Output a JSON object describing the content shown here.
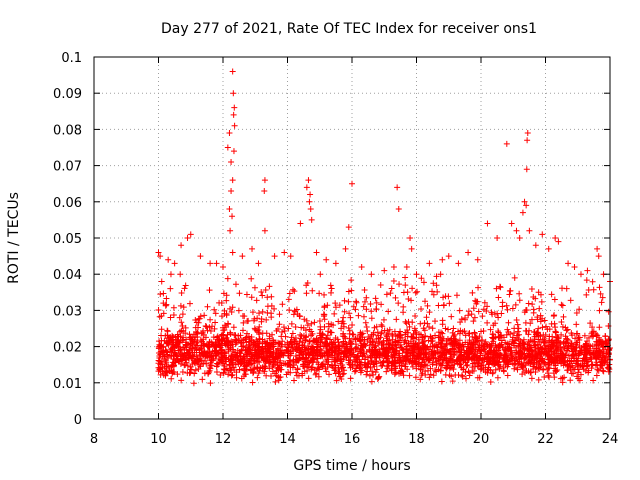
{
  "chart_data": {
    "type": "scatter",
    "title": "Day 277 of 2021, Rate Of TEC Index for receiver ons1",
    "xlabel": "GPS time / hours",
    "ylabel": "ROTI / TECUs",
    "xlim": [
      8,
      24
    ],
    "ylim": [
      0,
      0.1
    ],
    "x_ticks": [
      8,
      10,
      12,
      14,
      16,
      18,
      20,
      22,
      24
    ],
    "y_ticks": [
      0,
      0.01,
      0.02,
      0.03,
      0.04,
      0.05,
      0.06,
      0.07,
      0.08,
      0.09,
      0.1
    ],
    "x_tick_labels": [
      "8",
      "10",
      "12",
      "14",
      "16",
      "18",
      "20",
      "22",
      "24"
    ],
    "y_tick_labels": [
      "0",
      "0.01",
      "0.02",
      "0.03",
      "0.04",
      "0.05",
      "0.06",
      "0.07",
      "0.08",
      "0.09",
      "0.1"
    ],
    "grid": true,
    "marker": "+",
    "color": "#ff0000",
    "series": [
      {
        "name": "",
        "points": [
          [
            10.0,
            0.046
          ],
          [
            10.05,
            0.045
          ],
          [
            10.1,
            0.038
          ],
          [
            10.15,
            0.032
          ],
          [
            10.3,
            0.044
          ],
          [
            10.5,
            0.043
          ],
          [
            10.7,
            0.048
          ],
          [
            10.9,
            0.05
          ],
          [
            11.0,
            0.051
          ],
          [
            11.3,
            0.045
          ],
          [
            11.6,
            0.043
          ],
          [
            11.8,
            0.043
          ],
          [
            12.0,
            0.042
          ],
          [
            12.15,
            0.075
          ],
          [
            12.2,
            0.079
          ],
          [
            12.25,
            0.071
          ],
          [
            12.3,
            0.096
          ],
          [
            12.32,
            0.09
          ],
          [
            12.35,
            0.086
          ],
          [
            12.33,
            0.084
          ],
          [
            12.36,
            0.081
          ],
          [
            12.34,
            0.074
          ],
          [
            12.3,
            0.066
          ],
          [
            12.25,
            0.063
          ],
          [
            12.2,
            0.058
          ],
          [
            12.28,
            0.056
          ],
          [
            12.22,
            0.052
          ],
          [
            12.3,
            0.046
          ],
          [
            12.6,
            0.045
          ],
          [
            12.9,
            0.047
          ],
          [
            13.1,
            0.043
          ],
          [
            13.3,
            0.066
          ],
          [
            13.28,
            0.063
          ],
          [
            13.3,
            0.052
          ],
          [
            13.6,
            0.045
          ],
          [
            13.9,
            0.046
          ],
          [
            14.1,
            0.045
          ],
          [
            14.4,
            0.054
          ],
          [
            14.6,
            0.064
          ],
          [
            14.65,
            0.066
          ],
          [
            14.7,
            0.062
          ],
          [
            14.72,
            0.058
          ],
          [
            14.75,
            0.055
          ],
          [
            14.68,
            0.06
          ],
          [
            14.9,
            0.046
          ],
          [
            15.2,
            0.044
          ],
          [
            15.5,
            0.043
          ],
          [
            15.8,
            0.047
          ],
          [
            15.9,
            0.053
          ],
          [
            16.0,
            0.065
          ],
          [
            16.3,
            0.042
          ],
          [
            16.6,
            0.04
          ],
          [
            17.0,
            0.041
          ],
          [
            17.3,
            0.042
          ],
          [
            17.4,
            0.064
          ],
          [
            17.45,
            0.058
          ],
          [
            17.7,
            0.042
          ],
          [
            17.8,
            0.05
          ],
          [
            17.85,
            0.047
          ],
          [
            18.0,
            0.04
          ],
          [
            18.4,
            0.043
          ],
          [
            18.8,
            0.044
          ],
          [
            19.0,
            0.045
          ],
          [
            19.3,
            0.043
          ],
          [
            19.6,
            0.046
          ],
          [
            19.9,
            0.044
          ],
          [
            20.2,
            0.054
          ],
          [
            20.5,
            0.05
          ],
          [
            20.8,
            0.076
          ],
          [
            20.95,
            0.054
          ],
          [
            21.1,
            0.052
          ],
          [
            21.2,
            0.05
          ],
          [
            21.3,
            0.057
          ],
          [
            21.35,
            0.06
          ],
          [
            21.4,
            0.059
          ],
          [
            21.45,
            0.079
          ],
          [
            21.43,
            0.077
          ],
          [
            21.42,
            0.069
          ],
          [
            21.5,
            0.052
          ],
          [
            21.7,
            0.048
          ],
          [
            21.9,
            0.051
          ],
          [
            22.1,
            0.047
          ],
          [
            22.3,
            0.05
          ],
          [
            22.4,
            0.049
          ],
          [
            22.7,
            0.043
          ],
          [
            22.9,
            0.042
          ],
          [
            23.1,
            0.04
          ],
          [
            23.3,
            0.041
          ],
          [
            23.6,
            0.047
          ],
          [
            23.65,
            0.045
          ],
          [
            23.8,
            0.04
          ],
          [
            24.0,
            0.038
          ]
        ],
        "dense_band": {
          "x_range": [
            10.0,
            24.0
          ],
          "y_range": [
            0.005,
            0.04
          ],
          "typical_y": 0.018
        }
      }
    ]
  }
}
